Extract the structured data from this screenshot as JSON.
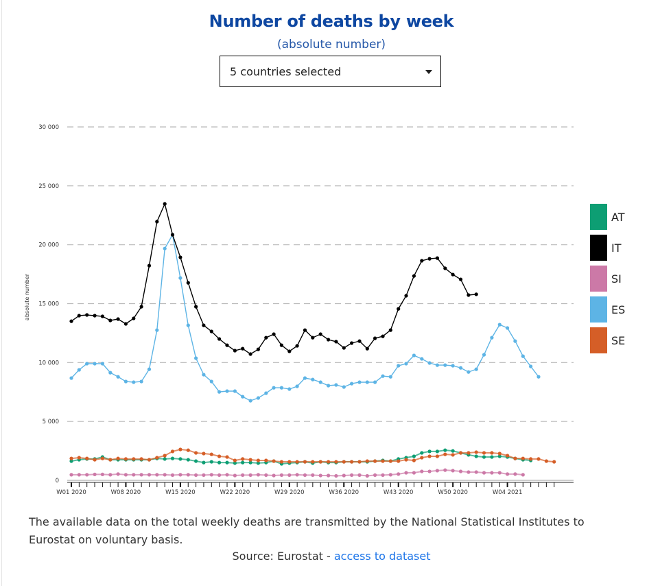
{
  "header": {
    "title": "Number of deaths by week",
    "subtitle": "(absolute number)"
  },
  "country_select": {
    "value": "5 countries selected",
    "icon": "caret-down-icon"
  },
  "footer": {
    "note": "The available data on the total weekly deaths are transmitted by the National Statistical Institutes to Eurostat on voluntary basis.",
    "source_prefix": "Source: Eurostat - ",
    "source_link": "access to dataset"
  },
  "chart_data": {
    "type": "line",
    "title": "Number of deaths by week",
    "subtitle": "(absolute number)",
    "xlabel": "",
    "ylabel": "absolute number",
    "ylim": [
      0,
      30000
    ],
    "yticks": [
      0,
      5000,
      10000,
      15000,
      20000,
      25000,
      30000
    ],
    "ytick_labels": [
      "0",
      "5 000",
      "10 000",
      "15 000",
      "20 000",
      "25 000",
      "30 000"
    ],
    "grid": "horizontal dashed",
    "legend_position": "right",
    "x": [
      "W01 2020",
      "W02 2020",
      "W03 2020",
      "W04 2020",
      "W05 2020",
      "W06 2020",
      "W07 2020",
      "W08 2020",
      "W09 2020",
      "W10 2020",
      "W11 2020",
      "W12 2020",
      "W13 2020",
      "W14 2020",
      "W15 2020",
      "W16 2020",
      "W17 2020",
      "W18 2020",
      "W19 2020",
      "W20 2020",
      "W21 2020",
      "W22 2020",
      "W23 2020",
      "W24 2020",
      "W25 2020",
      "W26 2020",
      "W27 2020",
      "W28 2020",
      "W29 2020",
      "W30 2020",
      "W31 2020",
      "W32 2020",
      "W33 2020",
      "W34 2020",
      "W35 2020",
      "W36 2020",
      "W37 2020",
      "W38 2020",
      "W39 2020",
      "W40 2020",
      "W41 2020",
      "W42 2020",
      "W43 2020",
      "W44 2020",
      "W45 2020",
      "W46 2020",
      "W47 2020",
      "W48 2020",
      "W49 2020",
      "W50 2020",
      "W51 2020",
      "W52 2020",
      "W53 2020",
      "W01 2021",
      "W02 2021",
      "W03 2021",
      "W04 2021",
      "W05 2021",
      "W06 2021",
      "W07 2021",
      "W08 2021",
      "W09 2021",
      "W10 2021"
    ],
    "xtick_labels": [
      "W01 2020",
      "W08 2020",
      "W15 2020",
      "W22 2020",
      "W29 2020",
      "W36 2020",
      "W43 2020",
      "W50 2020",
      "W04 2021"
    ],
    "series": [
      {
        "name": "AT",
        "color": "#0d9e73",
        "values": [
          1630,
          1750,
          1810,
          1810,
          1980,
          1750,
          1750,
          1750,
          1750,
          1750,
          1750,
          1860,
          1810,
          1860,
          1810,
          1750,
          1630,
          1510,
          1570,
          1510,
          1510,
          1460,
          1510,
          1510,
          1460,
          1510,
          1630,
          1400,
          1460,
          1510,
          1570,
          1460,
          1570,
          1510,
          1510,
          1570,
          1570,
          1570,
          1570,
          1630,
          1690,
          1630,
          1810,
          1920,
          2040,
          2330,
          2450,
          2450,
          2560,
          2500,
          2330,
          2160,
          2040,
          1980,
          1980,
          2040,
          1980,
          1860,
          1750,
          1690,
          null,
          null,
          null
        ]
      },
      {
        "name": "IT",
        "color": "#000000",
        "values": [
          13510,
          13980,
          14040,
          13980,
          13920,
          13570,
          13690,
          13280,
          13750,
          14740,
          18230,
          21960,
          23470,
          20850,
          18930,
          16770,
          14740,
          13160,
          12640,
          12000,
          11470,
          11010,
          11180,
          10720,
          11120,
          12110,
          12410,
          11470,
          10950,
          11420,
          12750,
          12110,
          12410,
          11940,
          11770,
          11240,
          11650,
          11820,
          11180,
          12060,
          12230,
          12750,
          14560,
          15670,
          17350,
          18640,
          18810,
          18870,
          18000,
          17470,
          17060,
          15730,
          15790,
          null,
          null,
          null,
          null,
          null,
          null,
          null,
          null,
          null,
          null
        ]
      },
      {
        "name": "SI",
        "color": "#cc79a7",
        "values": [
          470,
          470,
          470,
          500,
          500,
          470,
          530,
          470,
          470,
          470,
          470,
          470,
          470,
          440,
          470,
          470,
          440,
          440,
          470,
          440,
          470,
          410,
          440,
          440,
          470,
          440,
          410,
          440,
          440,
          470,
          440,
          440,
          410,
          410,
          380,
          410,
          440,
          440,
          380,
          440,
          440,
          470,
          530,
          640,
          640,
          760,
          760,
          820,
          870,
          820,
          760,
          700,
          700,
          640,
          640,
          640,
          530,
          530,
          470,
          null,
          null,
          null,
          null
        ]
      },
      {
        "name": "ES",
        "color": "#5db4e5",
        "values": [
          8680,
          9380,
          9900,
          9900,
          9900,
          9140,
          8790,
          8390,
          8330,
          8390,
          9430,
          12750,
          19680,
          20850,
          17180,
          13160,
          10370,
          8970,
          8390,
          7510,
          7570,
          7570,
          7100,
          6760,
          6990,
          7400,
          7860,
          7860,
          7750,
          7980,
          8680,
          8560,
          8330,
          8040,
          8100,
          7920,
          8210,
          8330,
          8330,
          8330,
          8850,
          8790,
          9730,
          9900,
          10600,
          10310,
          9960,
          9780,
          9780,
          9730,
          9550,
          9200,
          9430,
          10660,
          12110,
          13220,
          12930,
          11820,
          10540,
          9670,
          8790,
          null,
          null
        ]
      },
      {
        "name": "SE",
        "color": "#d55e27",
        "values": [
          1860,
          1920,
          1860,
          1750,
          1860,
          1750,
          1860,
          1810,
          1810,
          1810,
          1750,
          1920,
          2100,
          2450,
          2620,
          2560,
          2330,
          2270,
          2210,
          2040,
          1980,
          1690,
          1810,
          1750,
          1690,
          1690,
          1630,
          1570,
          1570,
          1570,
          1570,
          1570,
          1570,
          1570,
          1570,
          1570,
          1570,
          1570,
          1630,
          1630,
          1630,
          1630,
          1630,
          1750,
          1690,
          1920,
          2040,
          2040,
          2210,
          2160,
          2330,
          2330,
          2390,
          2330,
          2330,
          2270,
          2100,
          1860,
          1860,
          1810,
          1810,
          1630,
          1570
        ]
      }
    ]
  }
}
